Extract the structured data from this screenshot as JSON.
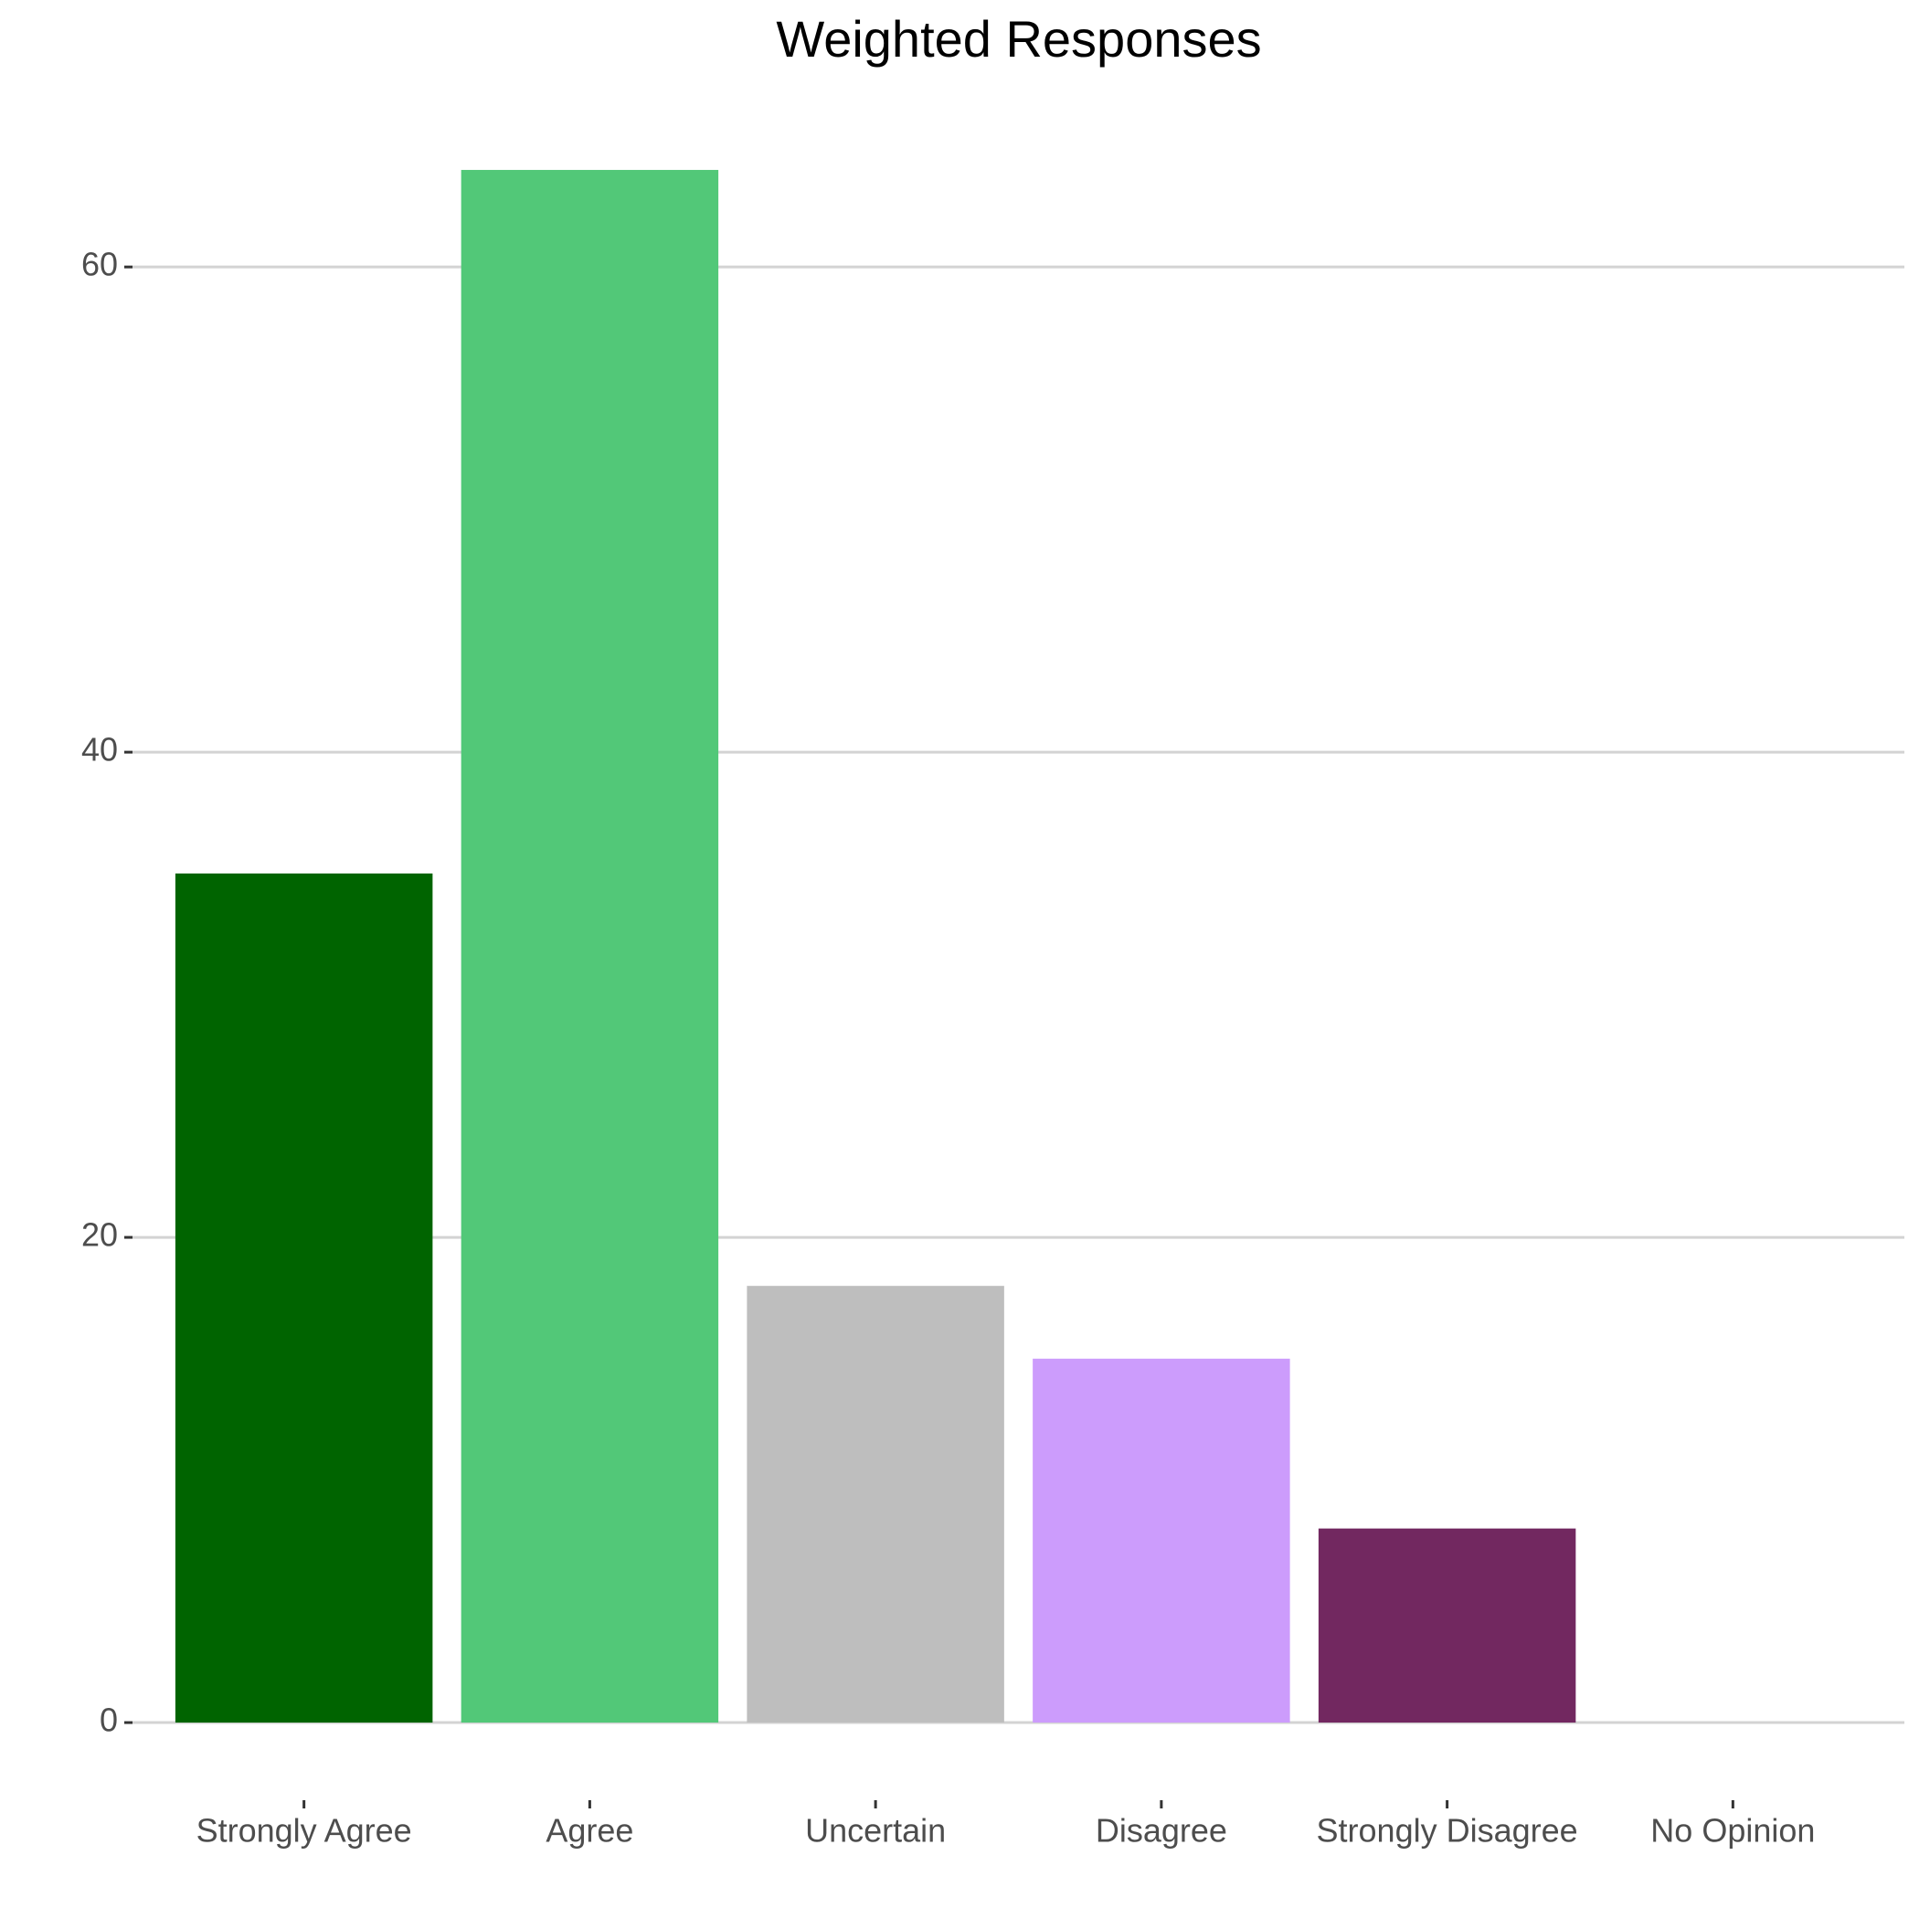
{
  "chart_data": {
    "type": "bar",
    "title": "Weighted Responses",
    "categories": [
      "Strongly Agree",
      "Agree",
      "Uncertain",
      "Disagree",
      "Strongly Disagree",
      "No Opinion"
    ],
    "values": [
      35,
      64,
      18,
      15,
      8,
      0
    ],
    "colors": [
      "#006400",
      "#52c878",
      "#bebebe",
      "#cc9cfc",
      "#722860",
      "#9a9a9a"
    ],
    "ylim": [
      -3.2,
      67.2
    ],
    "yticks": [
      0,
      20,
      40,
      60
    ],
    "grid": true
  }
}
